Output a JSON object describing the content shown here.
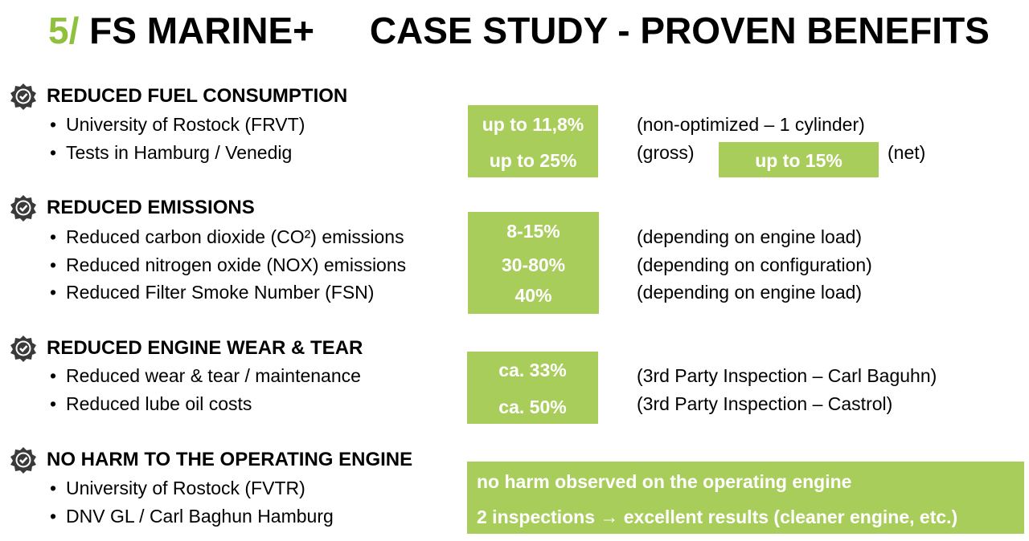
{
  "title": {
    "number": "5/",
    "brand": "FS MARINE+",
    "headline": "CASE STUDY - PROVEN BENEFITS"
  },
  "sections": [
    {
      "heading": "REDUCED FUEL CONSUMPTION",
      "icon": "check-badge-icon",
      "bullets": [
        "University of Rostock (FRVT)",
        "Tests in Hamburg / Venedig"
      ],
      "values": [
        "up to 11,8%",
        "up to 25%"
      ],
      "notes": [
        "(non-optimized – 1 cylinder)",
        "(gross)"
      ],
      "extra_value": "up to 15%",
      "extra_note": "(net)"
    },
    {
      "heading": "REDUCED EMISSIONS",
      "icon": "check-badge-icon",
      "bullets": [
        "Reduced carbon dioxide (CO²) emissions",
        "Reduced nitrogen oxide (NOX) emissions",
        "Reduced Filter Smoke Number (FSN)"
      ],
      "values": [
        "8-15%",
        "30-80%",
        "40%"
      ],
      "notes": [
        "(depending on engine load)",
        "(depending on configuration)",
        "(depending on engine load)"
      ]
    },
    {
      "heading": "REDUCED ENGINE WEAR & TEAR",
      "icon": "check-badge-icon",
      "bullets": [
        "Reduced wear & tear / maintenance",
        "Reduced lube oil costs"
      ],
      "values": [
        "ca. 33%",
        "ca. 50%"
      ],
      "notes": [
        "(3rd Party Inspection – Carl Baguhn)",
        "(3rd Party Inspection – Castrol)"
      ]
    },
    {
      "heading": "NO HARM TO THE OPERATING ENGINE",
      "icon": "check-badge-icon",
      "bullets": [
        "University of Rostock (FVTR)",
        "DNV GL / Carl Baghun Hamburg"
      ],
      "values": [
        "no harm observed on the operating engine",
        "2 inspections → excellent results (cleaner engine, etc.)"
      ]
    }
  ],
  "colors": {
    "accent": "#8fc13e",
    "box": "#a9cd5b",
    "text": "#000000"
  }
}
